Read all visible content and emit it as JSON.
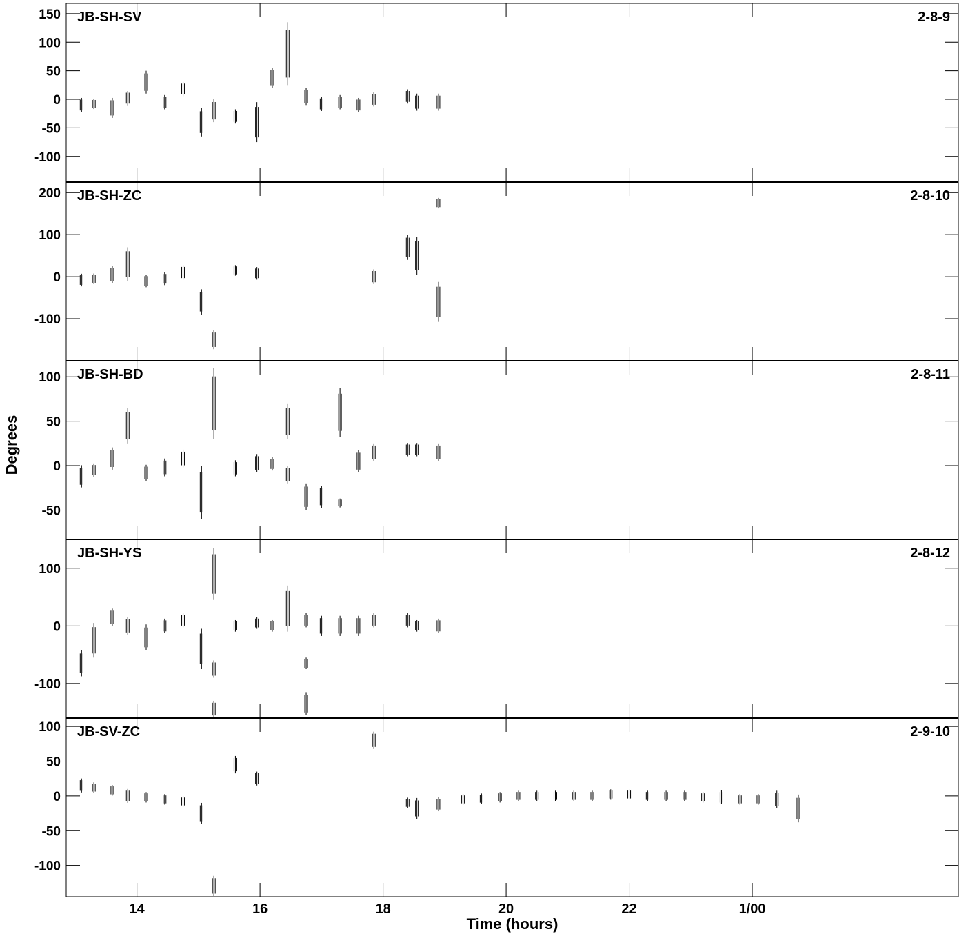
{
  "chart_data": {
    "type": "scatter",
    "xlabel": "Time (hours)",
    "ylabel": "Degrees",
    "xlim": [
      12.85,
      27.35
    ],
    "x_ticks": [
      14,
      16,
      18,
      20,
      22,
      24
    ],
    "x_tick_labels": [
      "14",
      "16",
      "18",
      "20",
      "22",
      "1/00"
    ],
    "grid": false,
    "marker": "short vertical dashes",
    "panels": [
      {
        "name": "JB-SH-SV",
        "label": "2-8-9",
        "ylim": [
          -145,
          168
        ],
        "y_ticks": [
          -100,
          -50,
          0,
          50,
          100,
          150
        ],
        "points": [
          [
            13.1,
            -10,
            25
          ],
          [
            13.3,
            -8,
            18
          ],
          [
            13.6,
            -15,
            35
          ],
          [
            13.85,
            2,
            25
          ],
          [
            14.15,
            30,
            40
          ],
          [
            14.45,
            -5,
            25
          ],
          [
            14.75,
            18,
            25
          ],
          [
            15.05,
            -40,
            50
          ],
          [
            15.25,
            -20,
            40
          ],
          [
            15.6,
            -30,
            25
          ],
          [
            15.95,
            -40,
            70
          ],
          [
            16.2,
            38,
            35
          ],
          [
            16.45,
            80,
            110
          ],
          [
            16.75,
            5,
            30
          ],
          [
            17.0,
            -8,
            25
          ],
          [
            17.3,
            -5,
            25
          ],
          [
            17.6,
            -10,
            25
          ],
          [
            17.85,
            0,
            25
          ],
          [
            18.4,
            5,
            25
          ],
          [
            18.55,
            -5,
            30
          ],
          [
            18.9,
            -5,
            30
          ]
        ]
      },
      {
        "name": "JB-SH-ZC",
        "label": "2-8-10",
        "ylim": [
          -200,
          225
        ],
        "y_ticks": [
          -100,
          0,
          100,
          200
        ],
        "points": [
          [
            13.1,
            -8,
            30
          ],
          [
            13.3,
            -5,
            25
          ],
          [
            13.6,
            5,
            40
          ],
          [
            13.85,
            30,
            80
          ],
          [
            14.15,
            -10,
            30
          ],
          [
            14.45,
            -5,
            30
          ],
          [
            14.75,
            10,
            35
          ],
          [
            15.05,
            -60,
            60
          ],
          [
            15.25,
            -150,
            45
          ],
          [
            15.6,
            15,
            25
          ],
          [
            15.95,
            8,
            30
          ],
          [
            17.85,
            0,
            35
          ],
          [
            18.4,
            70,
            60
          ],
          [
            18.55,
            50,
            90
          ],
          [
            18.9,
            175,
            25
          ],
          [
            18.9,
            -60,
            95
          ]
        ]
      },
      {
        "name": "JB-SH-BD",
        "label": "2-8-11",
        "ylim": [
          -83,
          118
        ],
        "y_ticks": [
          -50,
          0,
          50,
          100
        ],
        "points": [
          [
            13.1,
            -12,
            25
          ],
          [
            13.3,
            -5,
            15
          ],
          [
            13.6,
            8,
            25
          ],
          [
            13.85,
            45,
            40
          ],
          [
            14.15,
            -8,
            18
          ],
          [
            14.45,
            -2,
            20
          ],
          [
            14.75,
            8,
            20
          ],
          [
            15.05,
            -30,
            60
          ],
          [
            15.25,
            70,
            80
          ],
          [
            15.6,
            -3,
            18
          ],
          [
            15.95,
            3,
            20
          ],
          [
            16.2,
            2,
            15
          ],
          [
            16.45,
            50,
            40
          ],
          [
            16.45,
            -10,
            20
          ],
          [
            16.75,
            -35,
            30
          ],
          [
            17.0,
            -35,
            25
          ],
          [
            17.3,
            60,
            55
          ],
          [
            17.3,
            -42,
            10
          ],
          [
            17.6,
            5,
            25
          ],
          [
            17.85,
            15,
            20
          ],
          [
            18.4,
            18,
            15
          ],
          [
            18.55,
            18,
            15
          ],
          [
            18.9,
            15,
            20
          ]
        ]
      },
      {
        "name": "JB-SH-YS",
        "label": "2-8-12",
        "ylim": [
          -160,
          150
        ],
        "y_ticks": [
          -100,
          0,
          100
        ],
        "points": [
          [
            13.1,
            -65,
            45
          ],
          [
            13.3,
            -25,
            60
          ],
          [
            13.6,
            15,
            30
          ],
          [
            13.85,
            0,
            30
          ],
          [
            14.15,
            -20,
            45
          ],
          [
            14.45,
            0,
            25
          ],
          [
            14.75,
            10,
            25
          ],
          [
            15.05,
            -40,
            70
          ],
          [
            15.25,
            90,
            90
          ],
          [
            15.25,
            -75,
            30
          ],
          [
            15.25,
            -145,
            30
          ],
          [
            15.6,
            0,
            20
          ],
          [
            15.95,
            5,
            20
          ],
          [
            16.2,
            0,
            20
          ],
          [
            16.45,
            30,
            80
          ],
          [
            16.75,
            10,
            25
          ],
          [
            16.75,
            -65,
            20
          ],
          [
            16.75,
            -135,
            40
          ],
          [
            17.0,
            0,
            35
          ],
          [
            17.3,
            0,
            35
          ],
          [
            17.6,
            0,
            35
          ],
          [
            17.85,
            10,
            25
          ],
          [
            18.4,
            10,
            25
          ],
          [
            18.55,
            0,
            20
          ],
          [
            18.9,
            0,
            25
          ]
        ]
      },
      {
        "name": "JB-SV-ZC",
        "label": "2-9-10",
        "ylim": [
          -145,
          112
        ],
        "y_ticks": [
          -100,
          -50,
          0,
          50,
          100
        ],
        "points": [
          [
            13.1,
            15,
            20
          ],
          [
            13.3,
            12,
            15
          ],
          [
            13.6,
            8,
            15
          ],
          [
            13.85,
            0,
            20
          ],
          [
            14.15,
            -2,
            15
          ],
          [
            14.45,
            -5,
            15
          ],
          [
            14.75,
            -8,
            15
          ],
          [
            15.05,
            -25,
            30
          ],
          [
            15.25,
            -130,
            30
          ],
          [
            15.6,
            45,
            25
          ],
          [
            15.95,
            25,
            20
          ],
          [
            17.85,
            80,
            25
          ],
          [
            18.4,
            -10,
            15
          ],
          [
            18.55,
            -18,
            30
          ],
          [
            18.9,
            -12,
            20
          ],
          [
            19.3,
            -5,
            15
          ],
          [
            19.6,
            -4,
            15
          ],
          [
            19.9,
            -2,
            15
          ],
          [
            20.2,
            0,
            15
          ],
          [
            20.5,
            0,
            15
          ],
          [
            20.8,
            0,
            15
          ],
          [
            21.1,
            0,
            15
          ],
          [
            21.4,
            0,
            15
          ],
          [
            21.7,
            2,
            15
          ],
          [
            22.0,
            2,
            15
          ],
          [
            22.3,
            0,
            15
          ],
          [
            22.6,
            0,
            15
          ],
          [
            22.9,
            0,
            15
          ],
          [
            23.2,
            -2,
            15
          ],
          [
            23.5,
            -2,
            20
          ],
          [
            23.8,
            -5,
            15
          ],
          [
            24.1,
            -5,
            15
          ],
          [
            24.4,
            -5,
            25
          ],
          [
            24.75,
            -18,
            40
          ]
        ]
      }
    ]
  }
}
